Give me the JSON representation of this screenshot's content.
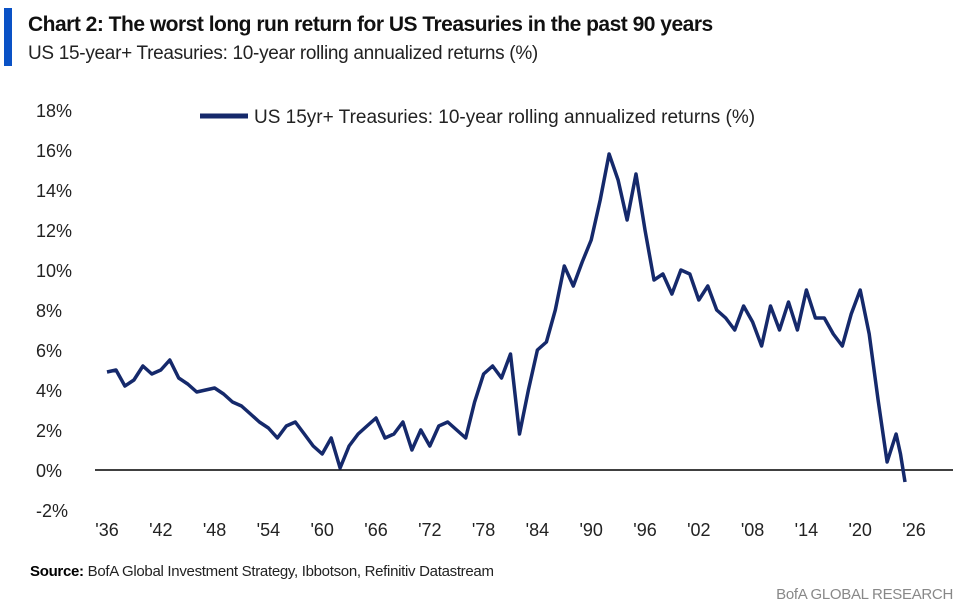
{
  "title": "Chart 2: The worst long run return for US Treasuries in the past 90 years",
  "subtitle": "US 15-year+ Treasuries: 10-year rolling annualized returns (%)",
  "source_label": "Source:",
  "source_text": "BofA Global Investment Strategy, Ibbotson, Refinitiv Datastream",
  "brand": "BofA GLOBAL RESEARCH",
  "colors": {
    "line": "#15296b",
    "accent": "#0a52c6"
  },
  "chart_data": {
    "type": "line",
    "title": "Chart 2: The worst long run return for US Treasuries in the past 90 years",
    "xlabel": "",
    "ylabel": "",
    "xlim": [
      1936,
      2026
    ],
    "ylim": [
      -2,
      18
    ],
    "y_ticks": [
      -2,
      0,
      2,
      4,
      6,
      8,
      10,
      12,
      14,
      16,
      18
    ],
    "y_tick_labels": [
      "-2%",
      "0%",
      "2%",
      "4%",
      "6%",
      "8%",
      "10%",
      "12%",
      "14%",
      "16%",
      "18%"
    ],
    "x_ticks": [
      1936,
      1942,
      1948,
      1954,
      1960,
      1966,
      1972,
      1978,
      1984,
      1990,
      1996,
      2002,
      2008,
      2014,
      2020,
      2026
    ],
    "x_tick_labels": [
      "'36",
      "'42",
      "'48",
      "'54",
      "'60",
      "'66",
      "'72",
      "'78",
      "'84",
      "'90",
      "'96",
      "'02",
      "'08",
      "'14",
      "'20",
      "'26"
    ],
    "legend": "top-center",
    "series": [
      {
        "name": "US 15yr+ Treasuries: 10-year rolling annualized returns (%)",
        "x": [
          1936,
          1937,
          1938,
          1939,
          1940,
          1941,
          1942,
          1943,
          1944,
          1945,
          1946,
          1947,
          1948,
          1949,
          1950,
          1951,
          1952,
          1953,
          1954,
          1955,
          1956,
          1957,
          1958,
          1959,
          1960,
          1961,
          1962,
          1963,
          1964,
          1965,
          1966,
          1967,
          1968,
          1969,
          1970,
          1971,
          1972,
          1973,
          1974,
          1975,
          1976,
          1977,
          1978,
          1979,
          1980,
          1981,
          1982,
          1983,
          1984,
          1985,
          1986,
          1987,
          1988,
          1989,
          1990,
          1991,
          1992,
          1993,
          1994,
          1995,
          1996,
          1997,
          1998,
          1999,
          2000,
          2001,
          2002,
          2003,
          2004,
          2005,
          2006,
          2007,
          2008,
          2009,
          2010,
          2011,
          2012,
          2013,
          2014,
          2015,
          2016,
          2017,
          2018,
          2019,
          2020,
          2021,
          2022,
          2023,
          2024,
          2024.5,
          2025
        ],
        "values": [
          4.9,
          5.0,
          4.2,
          4.5,
          5.2,
          4.8,
          5.0,
          5.5,
          4.6,
          4.3,
          3.9,
          4.0,
          4.1,
          3.8,
          3.4,
          3.2,
          2.8,
          2.4,
          2.1,
          1.6,
          2.2,
          2.4,
          1.8,
          1.2,
          0.8,
          1.6,
          0.1,
          1.2,
          1.8,
          2.2,
          2.6,
          1.6,
          1.8,
          2.4,
          1.0,
          2.0,
          1.2,
          2.2,
          2.4,
          2.0,
          1.6,
          3.4,
          4.8,
          5.2,
          4.6,
          5.8,
          1.8,
          4.0,
          6.0,
          6.4,
          8.0,
          10.2,
          9.2,
          10.4,
          11.5,
          13.5,
          15.8,
          14.5,
          12.5,
          14.8,
          12.0,
          9.5,
          9.8,
          8.8,
          10.0,
          9.8,
          8.5,
          9.2,
          8.0,
          7.6,
          7.0,
          8.2,
          7.4,
          6.2,
          8.2,
          7.0,
          8.4,
          7.0,
          9.0,
          7.6,
          7.6,
          6.8,
          6.2,
          7.8,
          9.0,
          6.8,
          3.5,
          0.4,
          1.8,
          0.8,
          -0.6
        ]
      }
    ]
  }
}
